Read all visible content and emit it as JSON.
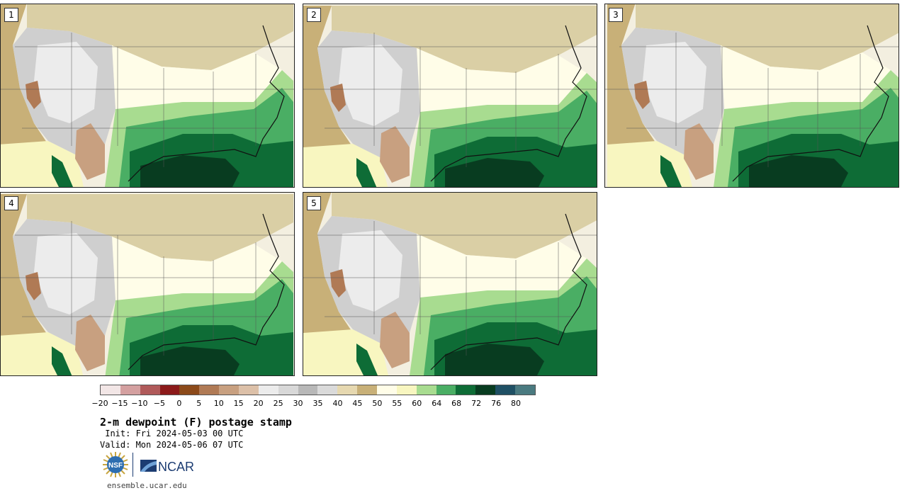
{
  "panels": [
    {
      "label": "1"
    },
    {
      "label": "2"
    },
    {
      "label": "3"
    },
    {
      "label": "4"
    },
    {
      "label": "5"
    }
  ],
  "colorbar": {
    "ticks": [
      "−20",
      "−15",
      "−10",
      "−5",
      "0",
      "5",
      "10",
      "15",
      "20",
      "25",
      "30",
      "35",
      "40",
      "45",
      "50",
      "55",
      "60",
      "64",
      "68",
      "72",
      "76",
      "80"
    ],
    "colors": [
      "#f2e6e6",
      "#d4a0a0",
      "#b05a5a",
      "#8c1a1a",
      "#8c4a1a",
      "#b07a55",
      "#c8a080",
      "#dcc0a8",
      "#ececec",
      "#d8d8d8",
      "#b8b8b8",
      "#dadada",
      "#e6d8b0",
      "#c8b078",
      "#fffde8",
      "#f8f6c0",
      "#a8dc90",
      "#4aae64",
      "#0e6c36",
      "#083c20",
      "#1f5064",
      "#4a7a80"
    ]
  },
  "title": "2-m dewpoint (F) postage stamp",
  "init": " Init: Fri 2024-05-03 00 UTC",
  "valid": "Valid: Mon 2024-05-06 07 UTC",
  "footer": {
    "url": "ensemble.ucar.edu",
    "logos": {
      "nsf": "NSF",
      "ncar": "NCAR"
    }
  }
}
